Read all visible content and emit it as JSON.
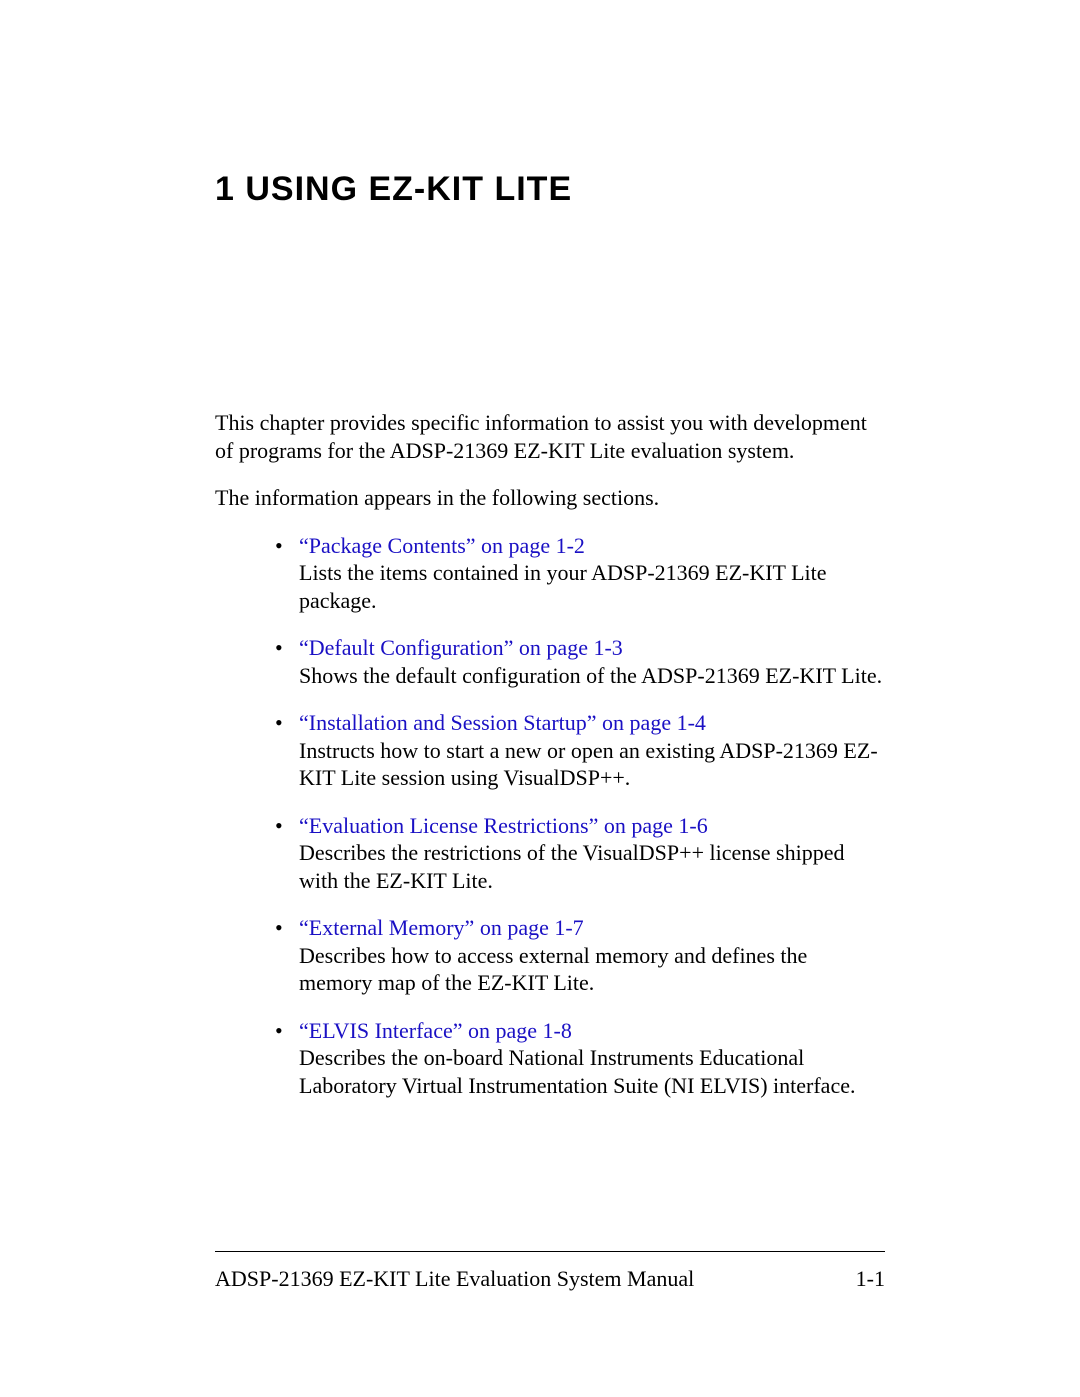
{
  "colors": {
    "link": "#1a10c4",
    "text": "#000000",
    "background": "#ffffff",
    "rule": "#000000"
  },
  "typography": {
    "heading_font": "Futura / Century Gothic",
    "heading_size_pt": 26,
    "heading_weight": "bold",
    "body_font": "Adobe Garamond / Garamond serif",
    "body_size_pt": 16,
    "line_height": 1.25
  },
  "chapter": {
    "number": "1",
    "title": "USING EZ-KIT LITE",
    "full_heading": "1  USING EZ-KIT LITE"
  },
  "intro": {
    "p1": "This chapter provides specific information to assist you with development of programs for the ADSP-21369 EZ-KIT Lite evaluation system.",
    "p2": "The information appears in the following sections."
  },
  "sections": [
    {
      "link": "“Package Contents” on page 1-2",
      "desc": "Lists the items contained in your ADSP-21369 EZ-KIT Lite package."
    },
    {
      "link": "“Default Configuration” on page 1-3",
      "desc": "Shows the default configuration of the ADSP-21369 EZ-KIT Lite."
    },
    {
      "link": "“Installation and Session Startup” on page 1-4",
      "desc": "Instructs how to start a new or open an existing ADSP-21369 EZ-KIT Lite session using VisualDSP++."
    },
    {
      "link": "“Evaluation License Restrictions” on page 1-6",
      "desc": "Describes the restrictions of the VisualDSP++ license shipped with the EZ-KIT Lite."
    },
    {
      "link": "“External Memory” on page 1-7",
      "desc": "Describes how to access external memory and defines the memory map of the EZ-KIT Lite."
    },
    {
      "link": "“ELVIS Interface” on page 1-8",
      "desc": "Describes the on-board National Instruments Educational Laboratory Virtual Instrumentation Suite (NI ELVIS) interface."
    }
  ],
  "footer": {
    "manual_title": "ADSP-21369 EZ-KIT Lite Evaluation System Manual",
    "page_number": "1-1"
  }
}
